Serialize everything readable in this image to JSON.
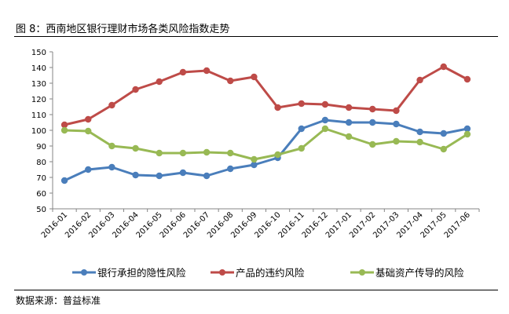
{
  "title": "图 8：西南地区银行理财市场各类风险指数走势",
  "source": "数据来源：普益标准",
  "chart_data": {
    "type": "line",
    "title": "",
    "xlabel": "",
    "ylabel": "",
    "ylim": [
      50,
      150
    ],
    "yticks": [
      50,
      60,
      70,
      80,
      90,
      100,
      110,
      120,
      130,
      140,
      150
    ],
    "grid": false,
    "legend": "bottom",
    "categories": [
      "2016-01",
      "2016-02",
      "2016-03",
      "2016-04",
      "2016-05",
      "2016-06",
      "2016-07",
      "2016-08",
      "2016-09",
      "2016-10",
      "2016-11",
      "2016-12",
      "2017-01",
      "2017-02",
      "2017-03",
      "2017-04",
      "2017-05",
      "2017-06"
    ],
    "series": [
      {
        "name": "银行承担的隐性风险",
        "color": "#4a7ebb",
        "values": [
          68,
          75,
          76.5,
          71.5,
          71,
          73,
          71,
          75.5,
          78,
          82.5,
          101,
          106.5,
          105,
          105,
          104,
          99,
          98,
          101
        ]
      },
      {
        "name": "产品的违约风险",
        "color": "#be4b48",
        "values": [
          103.5,
          107,
          116,
          126,
          131,
          137,
          138,
          131.5,
          134,
          114.5,
          117,
          116.5,
          114.5,
          113.5,
          112.5,
          132,
          140.5,
          132.5
        ]
      },
      {
        "name": "基础资产传导的风险",
        "color": "#98b954",
        "values": [
          100,
          99.5,
          90,
          88.5,
          85.5,
          85.5,
          86,
          85.5,
          81.5,
          84.5,
          88.5,
          101,
          96,
          91,
          93,
          92.5,
          88,
          97.5
        ]
      }
    ]
  }
}
